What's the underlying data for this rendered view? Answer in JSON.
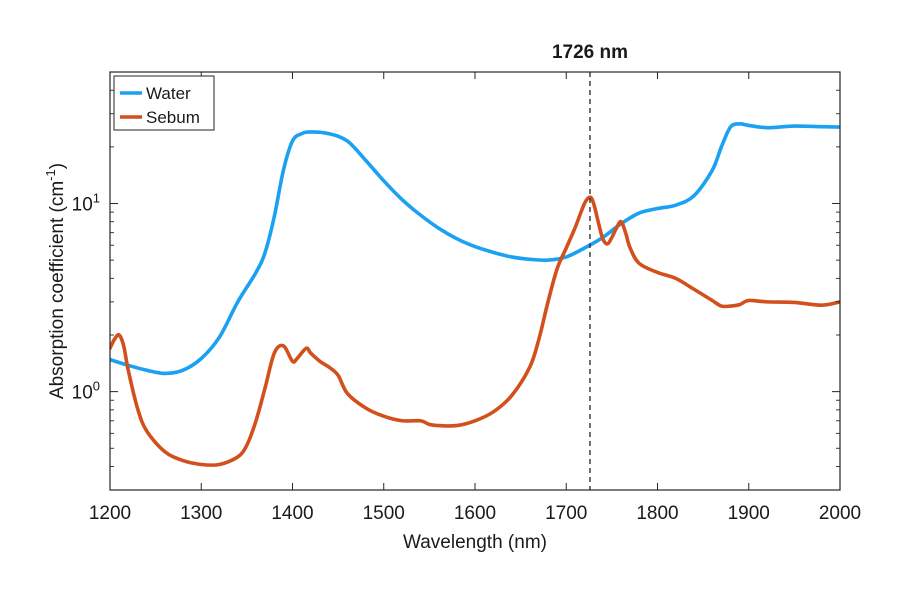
{
  "chart_data": {
    "type": "line",
    "title": "",
    "xlabel": "Wavelength (nm)",
    "ylabel": {
      "prefix": "Absorption coefficient (cm",
      "sup": "-1",
      "suffix": ")"
    },
    "xlim": [
      1200,
      2000
    ],
    "ylim": [
      0.3,
      50
    ],
    "yscale": "log",
    "grid": false,
    "legend_position": "top-left",
    "x_ticks": [
      1200,
      1300,
      1400,
      1500,
      1600,
      1700,
      1800,
      1900,
      2000
    ],
    "x_tick_labels": [
      "1200",
      "1300",
      "1400",
      "1500",
      "1600",
      "1700",
      "1800",
      "1900",
      "2000"
    ],
    "y_ticks": [
      {
        "value": 1,
        "base": "10",
        "exp": "0"
      },
      {
        "value": 10,
        "base": "10",
        "exp": "1"
      }
    ],
    "annotations": [
      {
        "x": 1726,
        "label": "1726 nm",
        "style": "dashed-vertical-line"
      }
    ],
    "series": [
      {
        "name": "Water",
        "color": "#1ba1f2",
        "x": [
          1200,
          1220,
          1240,
          1260,
          1280,
          1300,
          1320,
          1340,
          1360,
          1370,
          1380,
          1390,
          1400,
          1410,
          1420,
          1440,
          1460,
          1480,
          1500,
          1520,
          1540,
          1560,
          1580,
          1600,
          1620,
          1640,
          1660,
          1680,
          1700,
          1720,
          1740,
          1760,
          1780,
          1800,
          1820,
          1840,
          1860,
          1870,
          1880,
          1890,
          1900,
          1920,
          1950,
          1980,
          2000
        ],
        "y": [
          1.48,
          1.38,
          1.3,
          1.25,
          1.3,
          1.5,
          1.95,
          3.0,
          4.3,
          5.5,
          8.5,
          15.0,
          21.5,
          23.5,
          24.0,
          23.5,
          21.5,
          17.0,
          13.2,
          10.5,
          8.7,
          7.4,
          6.5,
          5.9,
          5.5,
          5.2,
          5.05,
          5.0,
          5.2,
          5.8,
          6.6,
          7.8,
          8.9,
          9.4,
          9.8,
          11.0,
          15.0,
          20.0,
          25.5,
          26.5,
          26.0,
          25.3,
          25.8,
          25.6,
          25.5
        ]
      },
      {
        "name": "Sebum",
        "color": "#d2501c",
        "x": [
          1200,
          1205,
          1210,
          1215,
          1220,
          1230,
          1240,
          1260,
          1280,
          1300,
          1320,
          1340,
          1350,
          1360,
          1370,
          1380,
          1390,
          1400,
          1405,
          1415,
          1420,
          1430,
          1440,
          1450,
          1460,
          1480,
          1500,
          1520,
          1540,
          1550,
          1560,
          1580,
          1600,
          1620,
          1640,
          1660,
          1670,
          1680,
          1690,
          1700,
          1710,
          1720,
          1726,
          1730,
          1735,
          1740,
          1745,
          1750,
          1755,
          1760,
          1765,
          1770,
          1780,
          1800,
          1820,
          1840,
          1860,
          1870,
          1880,
          1890,
          1900,
          1920,
          1950,
          1980,
          2000
        ],
        "y": [
          1.7,
          1.9,
          2.0,
          1.75,
          1.3,
          0.82,
          0.62,
          0.48,
          0.43,
          0.41,
          0.41,
          0.45,
          0.52,
          0.7,
          1.05,
          1.6,
          1.75,
          1.45,
          1.5,
          1.7,
          1.6,
          1.45,
          1.35,
          1.22,
          0.98,
          0.82,
          0.74,
          0.7,
          0.7,
          0.67,
          0.66,
          0.66,
          0.7,
          0.78,
          0.95,
          1.35,
          1.9,
          3.0,
          4.5,
          5.8,
          7.5,
          10.0,
          10.8,
          10.0,
          8.0,
          6.5,
          6.1,
          6.6,
          7.4,
          8.0,
          7.0,
          5.8,
          4.8,
          4.3,
          4.0,
          3.5,
          3.05,
          2.85,
          2.85,
          2.9,
          3.05,
          3.0,
          2.98,
          2.88,
          3.0
        ]
      }
    ]
  }
}
